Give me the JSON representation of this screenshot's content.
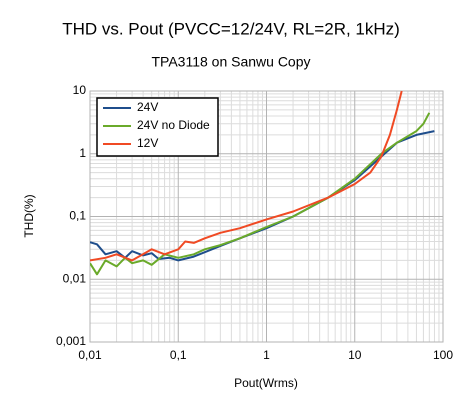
{
  "chart_data": {
    "type": "line",
    "title": "THD vs. Pout (PVCC=12/24V, RL=2R, 1kHz)",
    "subtitle": "TPA3118 on Sanwu Copy",
    "x_label": "Pout(Wrms)",
    "y_label": "THD(%)",
    "x_log": true,
    "y_log": true,
    "grid": true,
    "minor_grid": true,
    "legend_position": "top-left",
    "xlim": [
      0.01,
      100
    ],
    "ylim": [
      0.001,
      10
    ],
    "xticks": [
      {
        "value": 0.01,
        "label": "0,01"
      },
      {
        "value": 0.1,
        "label": "0,1"
      },
      1,
      10,
      100
    ],
    "yticks": [
      {
        "value": 0.001,
        "label": "0,001"
      },
      {
        "value": 0.01,
        "label": "0,01"
      },
      {
        "value": 0.1,
        "label": "0,1"
      },
      1,
      10
    ],
    "series": [
      {
        "name": "24V",
        "color": "#1f4e8c",
        "x": [
          0.01,
          0.012,
          0.015,
          0.02,
          0.025,
          0.03,
          0.04,
          0.05,
          0.06,
          0.08,
          0.1,
          0.15,
          0.2,
          0.3,
          0.5,
          1,
          2,
          5,
          10,
          20,
          30,
          50,
          80
        ],
        "values": [
          0.039,
          0.036,
          0.025,
          0.028,
          0.022,
          0.028,
          0.024,
          0.026,
          0.021,
          0.022,
          0.02,
          0.023,
          0.027,
          0.034,
          0.045,
          0.065,
          0.1,
          0.2,
          0.38,
          0.9,
          1.5,
          2,
          2.3
        ]
      },
      {
        "name": "24V no Diode",
        "color": "#6aaa2a",
        "x": [
          0.01,
          0.012,
          0.015,
          0.02,
          0.025,
          0.03,
          0.04,
          0.05,
          0.07,
          0.1,
          0.15,
          0.2,
          0.3,
          0.5,
          1,
          2,
          5,
          10,
          20,
          30,
          50,
          60,
          70
        ],
        "values": [
          0.018,
          0.012,
          0.02,
          0.016,
          0.022,
          0.018,
          0.02,
          0.017,
          0.025,
          0.022,
          0.025,
          0.03,
          0.035,
          0.045,
          0.068,
          0.1,
          0.2,
          0.4,
          1.0,
          1.5,
          2.3,
          3,
          4.5
        ]
      },
      {
        "name": "12V",
        "color": "#f04a24",
        "x": [
          0.01,
          0.015,
          0.02,
          0.03,
          0.05,
          0.07,
          0.1,
          0.12,
          0.15,
          0.2,
          0.3,
          0.5,
          1,
          2,
          5,
          10,
          15,
          20,
          25,
          30,
          34
        ],
        "values": [
          0.02,
          0.022,
          0.025,
          0.02,
          0.03,
          0.025,
          0.03,
          0.04,
          0.038,
          0.045,
          0.055,
          0.065,
          0.09,
          0.12,
          0.2,
          0.33,
          0.5,
          0.9,
          2,
          5,
          10
        ]
      }
    ]
  }
}
